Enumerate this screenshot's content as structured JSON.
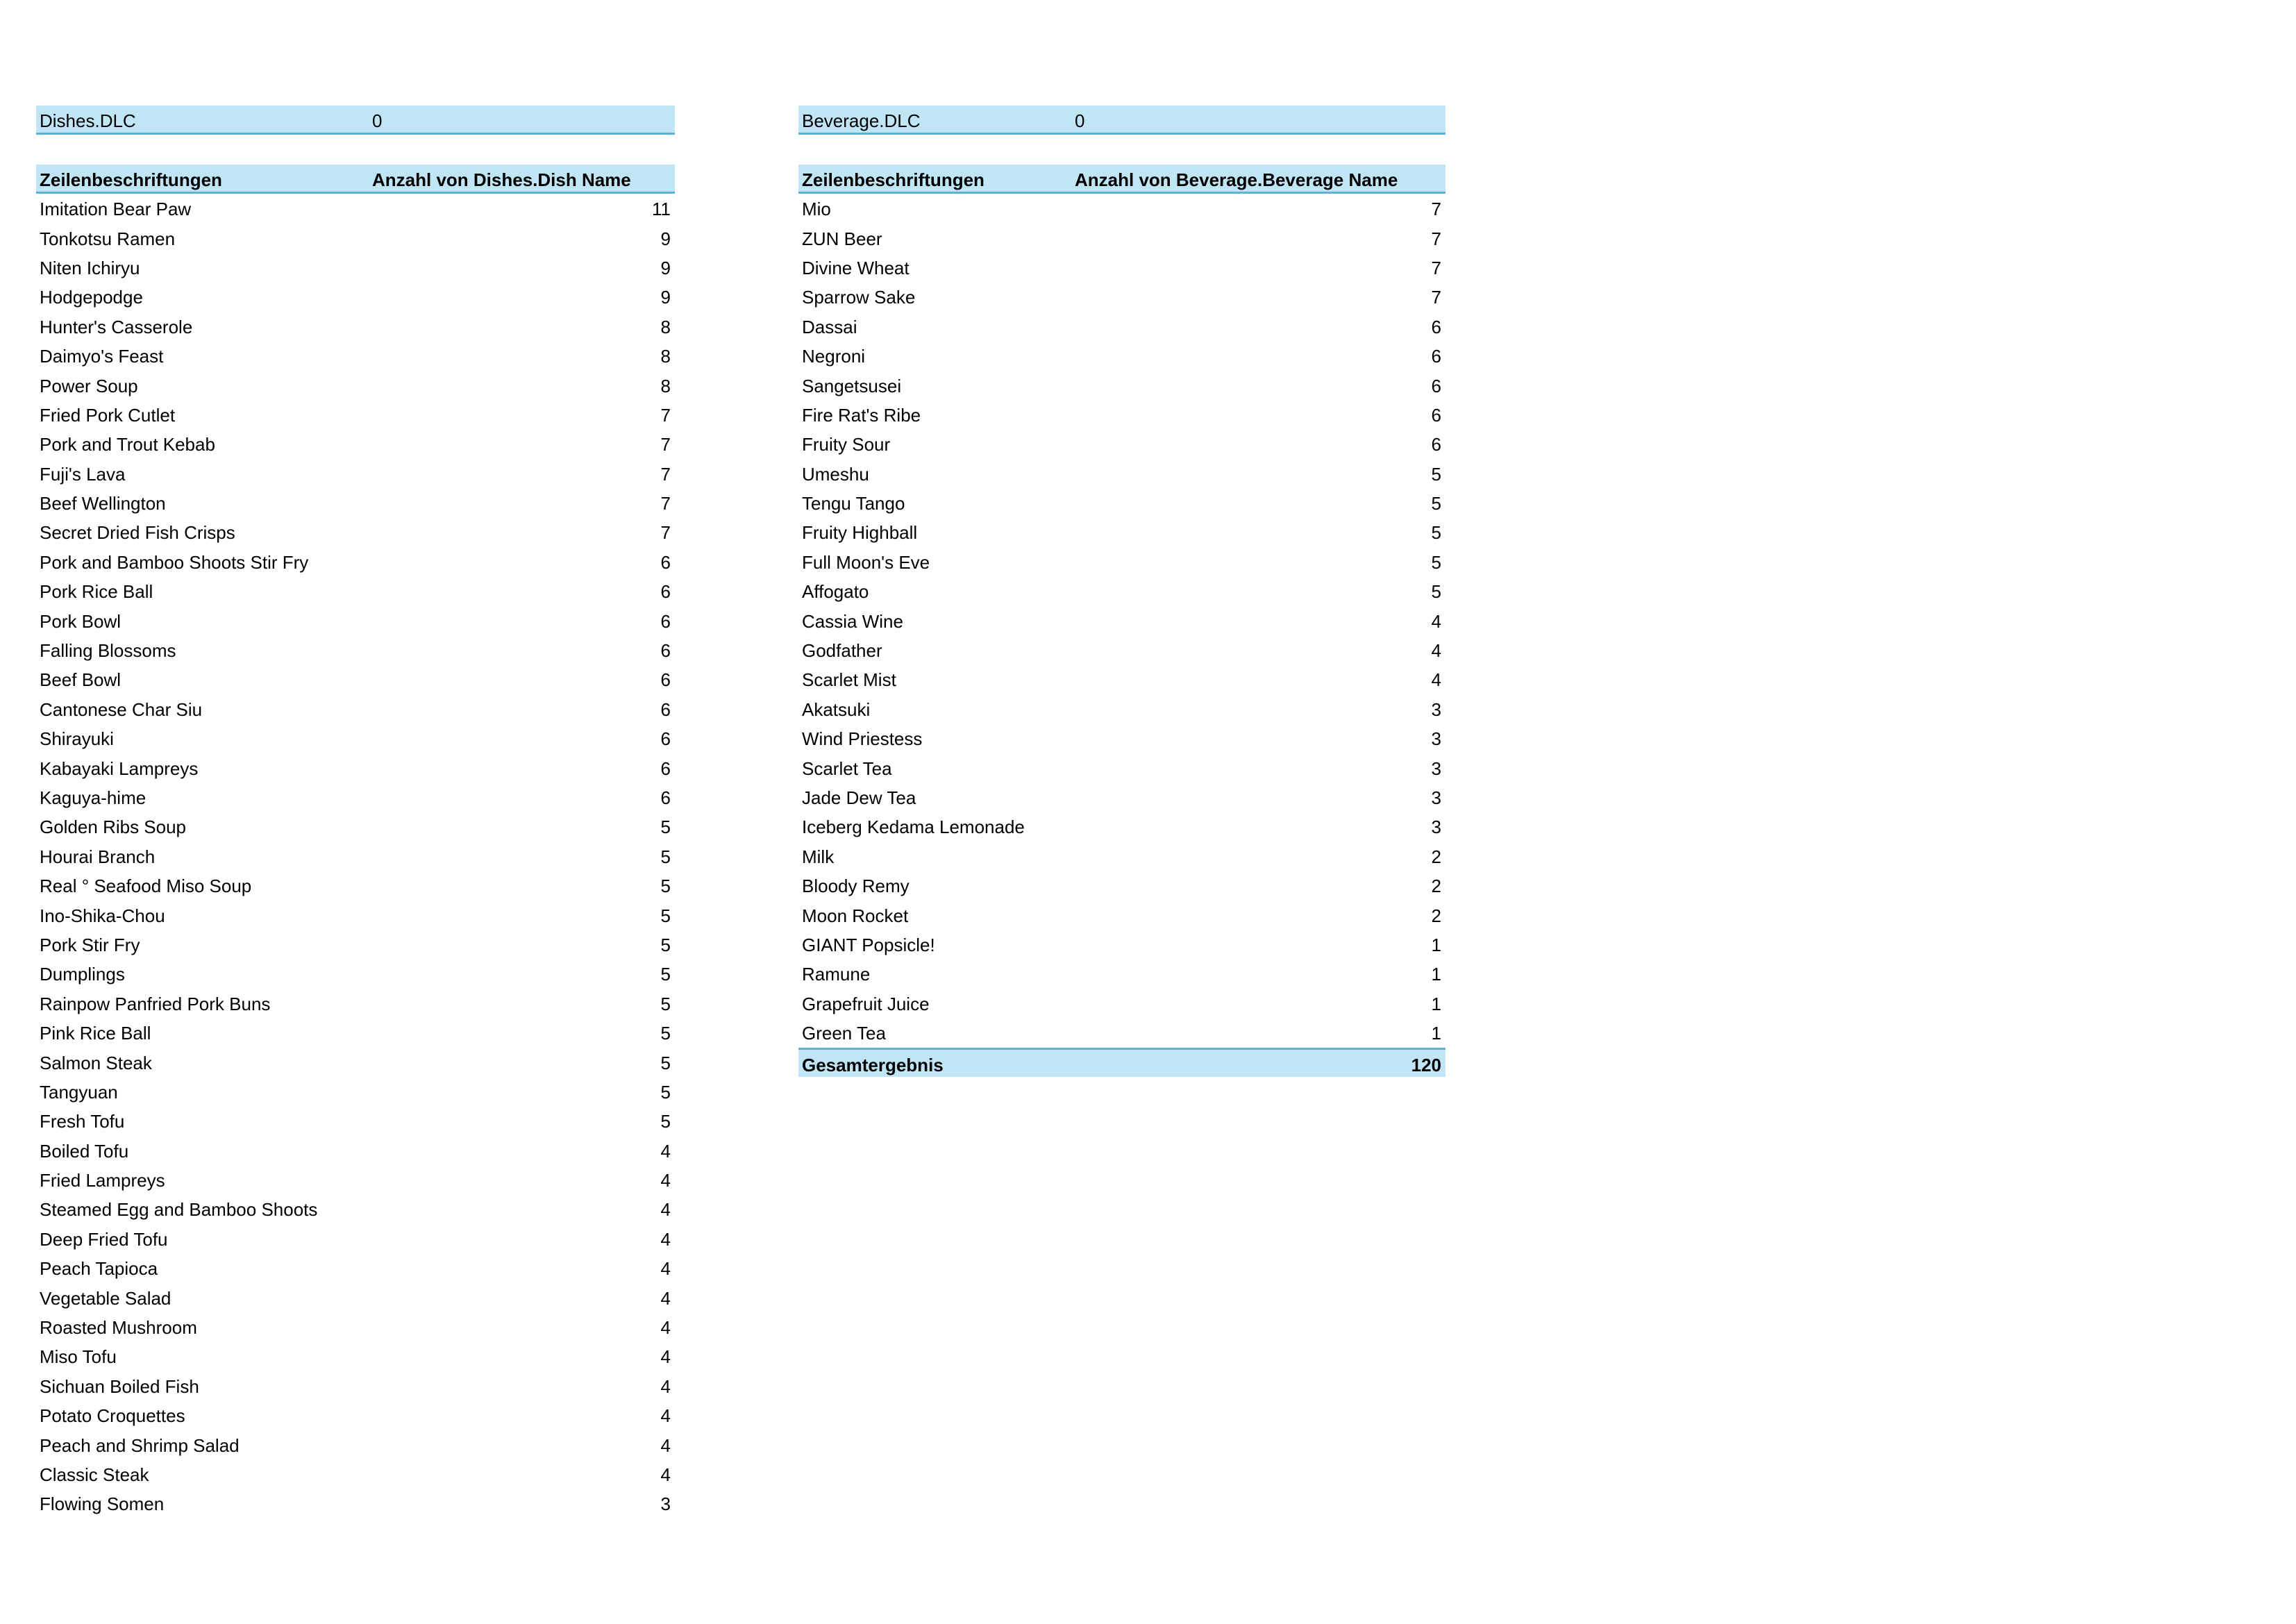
{
  "dishes": {
    "filter": {
      "label": "Dishes.DLC",
      "value": "0"
    },
    "header": {
      "row_labels": "Zeilenbeschriftungen",
      "count_label": "Anzahl von Dishes.Dish Name"
    },
    "rows": [
      [
        "Imitation Bear Paw",
        11
      ],
      [
        "Tonkotsu Ramen",
        9
      ],
      [
        "Niten Ichiryu",
        9
      ],
      [
        "Hodgepodge",
        9
      ],
      [
        "Hunter's Casserole",
        8
      ],
      [
        "Daimyo's Feast",
        8
      ],
      [
        "Power Soup",
        8
      ],
      [
        "Fried Pork Cutlet",
        7
      ],
      [
        "Pork and  Trout Kebab",
        7
      ],
      [
        "Fuji's Lava",
        7
      ],
      [
        "Beef Wellington",
        7
      ],
      [
        "Secret Dried Fish Crisps",
        7
      ],
      [
        "Pork and Bamboo Shoots Stir Fry",
        6
      ],
      [
        "Pork Rice Ball",
        6
      ],
      [
        "Pork Bowl",
        6
      ],
      [
        "Falling Blossoms",
        6
      ],
      [
        "Beef Bowl",
        6
      ],
      [
        "Cantonese Char Siu",
        6
      ],
      [
        "Shirayuki",
        6
      ],
      [
        "Kabayaki Lampreys",
        6
      ],
      [
        "Kaguya-hime",
        6
      ],
      [
        "Golden Ribs Soup",
        5
      ],
      [
        "Hourai Branch",
        5
      ],
      [
        "Real ° Seafood Miso Soup",
        5
      ],
      [
        "Ino-Shika-Chou",
        5
      ],
      [
        "Pork Stir Fry",
        5
      ],
      [
        "Dumplings",
        5
      ],
      [
        "Rainpow Panfried Pork Buns",
        5
      ],
      [
        "Pink Rice Ball",
        5
      ],
      [
        "Salmon Steak",
        5
      ],
      [
        "Tangyuan",
        5
      ],
      [
        "Fresh Tofu",
        5
      ],
      [
        "Boiled Tofu",
        4
      ],
      [
        "Fried Lampreys",
        4
      ],
      [
        "Steamed Egg and Bamboo Shoots",
        4
      ],
      [
        "Deep Fried Tofu",
        4
      ],
      [
        "Peach Tapioca",
        4
      ],
      [
        "Vegetable Salad",
        4
      ],
      [
        "Roasted Mushroom",
        4
      ],
      [
        "Miso Tofu",
        4
      ],
      [
        "Sichuan Boiled Fish",
        4
      ],
      [
        "Potato Croquettes",
        4
      ],
      [
        "Peach and Shrimp Salad",
        4
      ],
      [
        "Classic Steak",
        4
      ],
      [
        "Flowing Somen",
        3
      ]
    ]
  },
  "beverages": {
    "filter": {
      "label": "Beverage.DLC",
      "value": "0"
    },
    "header": {
      "row_labels": "Zeilenbeschriftungen",
      "count_label": "Anzahl von Beverage.Beverage Name"
    },
    "rows": [
      [
        "Mio",
        7
      ],
      [
        "ZUN Beer",
        7
      ],
      [
        "Divine Wheat",
        7
      ],
      [
        "Sparrow Sake",
        7
      ],
      [
        "Dassai",
        6
      ],
      [
        "Negroni",
        6
      ],
      [
        "Sangetsusei",
        6
      ],
      [
        "Fire Rat's Ribe",
        6
      ],
      [
        "Fruity Sour",
        6
      ],
      [
        "Umeshu",
        5
      ],
      [
        "Tengu Tango",
        5
      ],
      [
        "Fruity Highball",
        5
      ],
      [
        "Full Moon's Eve",
        5
      ],
      [
        "Affogato",
        5
      ],
      [
        "Cassia Wine",
        4
      ],
      [
        "Godfather",
        4
      ],
      [
        "Scarlet Mist",
        4
      ],
      [
        "Akatsuki",
        3
      ],
      [
        "Wind Priestess",
        3
      ],
      [
        "Scarlet Tea",
        3
      ],
      [
        "Jade Dew Tea",
        3
      ],
      [
        "Iceberg Kedama Lemonade",
        3
      ],
      [
        "Milk",
        2
      ],
      [
        "Bloody Remy",
        2
      ],
      [
        "Moon Rocket",
        2
      ],
      [
        "GIANT Popsicle!",
        1
      ],
      [
        "Ramune",
        1
      ],
      [
        "Grapefruit Juice",
        1
      ],
      [
        "Green Tea",
        1
      ]
    ],
    "total": {
      "label": "Gesamtergebnis",
      "value": "120"
    }
  },
  "colors": {
    "band": "#c0e6f5",
    "border": "#5bb3d8"
  }
}
